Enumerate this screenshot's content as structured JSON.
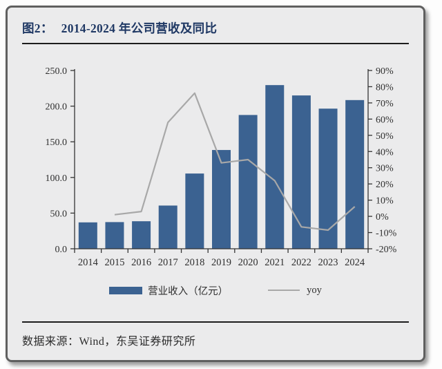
{
  "card": {
    "title_prefix": "图2：",
    "title": "2014-2024 年公司营收及同比",
    "source": "数据来源：Wind，东吴证券研究所"
  },
  "colors": {
    "bar": "#3b6291",
    "line": "#a8a8a8",
    "axis": "#333333",
    "title_navy": "#1f3864"
  },
  "chart_data": {
    "type": "bar+line",
    "title": "2014-2024 年公司营收及同比",
    "categories": [
      "2014",
      "2015",
      "2016",
      "2017",
      "2018",
      "2019",
      "2020",
      "2021",
      "2022",
      "2023",
      "2024"
    ],
    "series": [
      {
        "name": "营业收入（亿元）",
        "type": "bar",
        "axis": "left",
        "values": [
          37.0,
          37.4,
          38.6,
          60.6,
          105.5,
          138.5,
          187.6,
          229.5,
          215.0,
          196.5,
          208.5
        ]
      },
      {
        "name": "yoy",
        "type": "line",
        "axis": "right",
        "values": [
          null,
          1,
          3,
          58,
          76,
          33,
          35,
          22,
          -6.5,
          -8.5,
          6
        ]
      }
    ],
    "left_axis": {
      "min": 0,
      "max": 250,
      "tick_values": [
        0,
        50,
        100,
        150,
        200,
        250
      ],
      "tick_labels": [
        "0.0",
        "50.0",
        "100.0",
        "150.0",
        "200.0",
        "250.0"
      ]
    },
    "right_axis": {
      "min": -20,
      "max": 90,
      "tick_values": [
        -20,
        -10,
        0,
        10,
        20,
        30,
        40,
        50,
        60,
        70,
        80,
        90
      ],
      "tick_labels": [
        "-20%",
        "-10%",
        "0%",
        "10%",
        "20%",
        "30%",
        "40%",
        "50%",
        "60%",
        "70%",
        "80%",
        "90%"
      ]
    },
    "grid": false,
    "legend_position": "bottom"
  }
}
